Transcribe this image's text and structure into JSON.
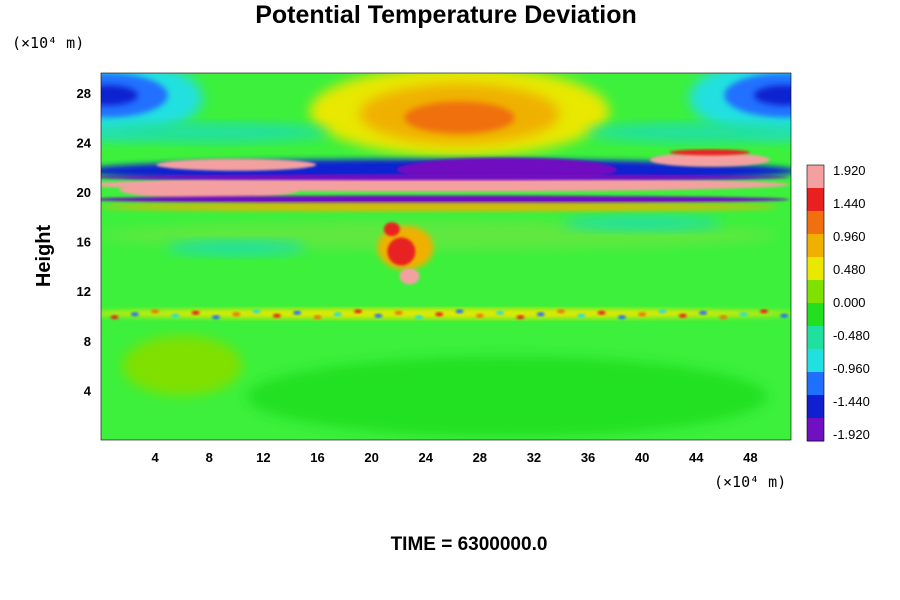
{
  "chart_data": {
    "type": "heatmap",
    "title": "Potential Temperature Deviation",
    "ylabel": "Height",
    "xlabel": "",
    "x_unit": "(×10⁴ m)",
    "y_unit": "(×10⁴ m)",
    "xlim": [
      0,
      51
    ],
    "ylim": [
      0,
      29.6
    ],
    "x_ticks": [
      4,
      8,
      12,
      16,
      20,
      24,
      28,
      32,
      36,
      40,
      44,
      48
    ],
    "y_ticks": [
      4,
      8,
      12,
      16,
      20,
      24,
      28
    ],
    "x_tick_labels": [
      "4",
      "8",
      "12",
      "16",
      "20",
      "24",
      "28",
      "32",
      "36",
      "40",
      "44",
      "48"
    ],
    "y_tick_labels": [
      "4",
      "8",
      "12",
      "16",
      "20",
      "24",
      "28"
    ],
    "grid": false,
    "colorbar": {
      "position": "right",
      "min": -1.92,
      "max": 1.92,
      "labels": [
        "1.920",
        "1.440",
        "0.960",
        "0.480",
        "0.000",
        "-0.480",
        "-0.960",
        "-1.440",
        "-1.920"
      ],
      "label_values": [
        1.92,
        1.44,
        0.96,
        0.48,
        0.0,
        -0.48,
        -0.96,
        -1.44,
        -1.92
      ],
      "colors": [
        "#f4a0a0",
        "#e82020",
        "#f07010",
        "#f0b000",
        "#e8e800",
        "#80e000",
        "#20e020",
        "#20e0a0",
        "#20e0e0",
        "#2070ff",
        "#1020d0",
        "#7010c0"
      ]
    },
    "features": [
      {
        "name": "warm-max-upper-center",
        "x": 26.5,
        "y": 26.2,
        "value": 0.9
      },
      {
        "name": "cold-min-upper-left",
        "x": 0.5,
        "y": 27.5,
        "value": -1.4
      },
      {
        "name": "cold-min-upper-right",
        "x": 50.5,
        "y": 27.5,
        "value": -1.4
      },
      {
        "name": "wave-layer-positive",
        "x": 25,
        "y": 20.5,
        "value": 1.92
      },
      {
        "name": "wave-layer-negative",
        "x": 25,
        "y": 21.3,
        "value": -1.92
      },
      {
        "name": "convective-plume",
        "x": 22.5,
        "y": 14,
        "value": 1.5
      },
      {
        "name": "tropopause-noise-band",
        "x": 25,
        "y": 10,
        "value": 0.3
      }
    ],
    "background_value": 0.1
  },
  "footer": {
    "label": "TIME = 6300000.0"
  }
}
